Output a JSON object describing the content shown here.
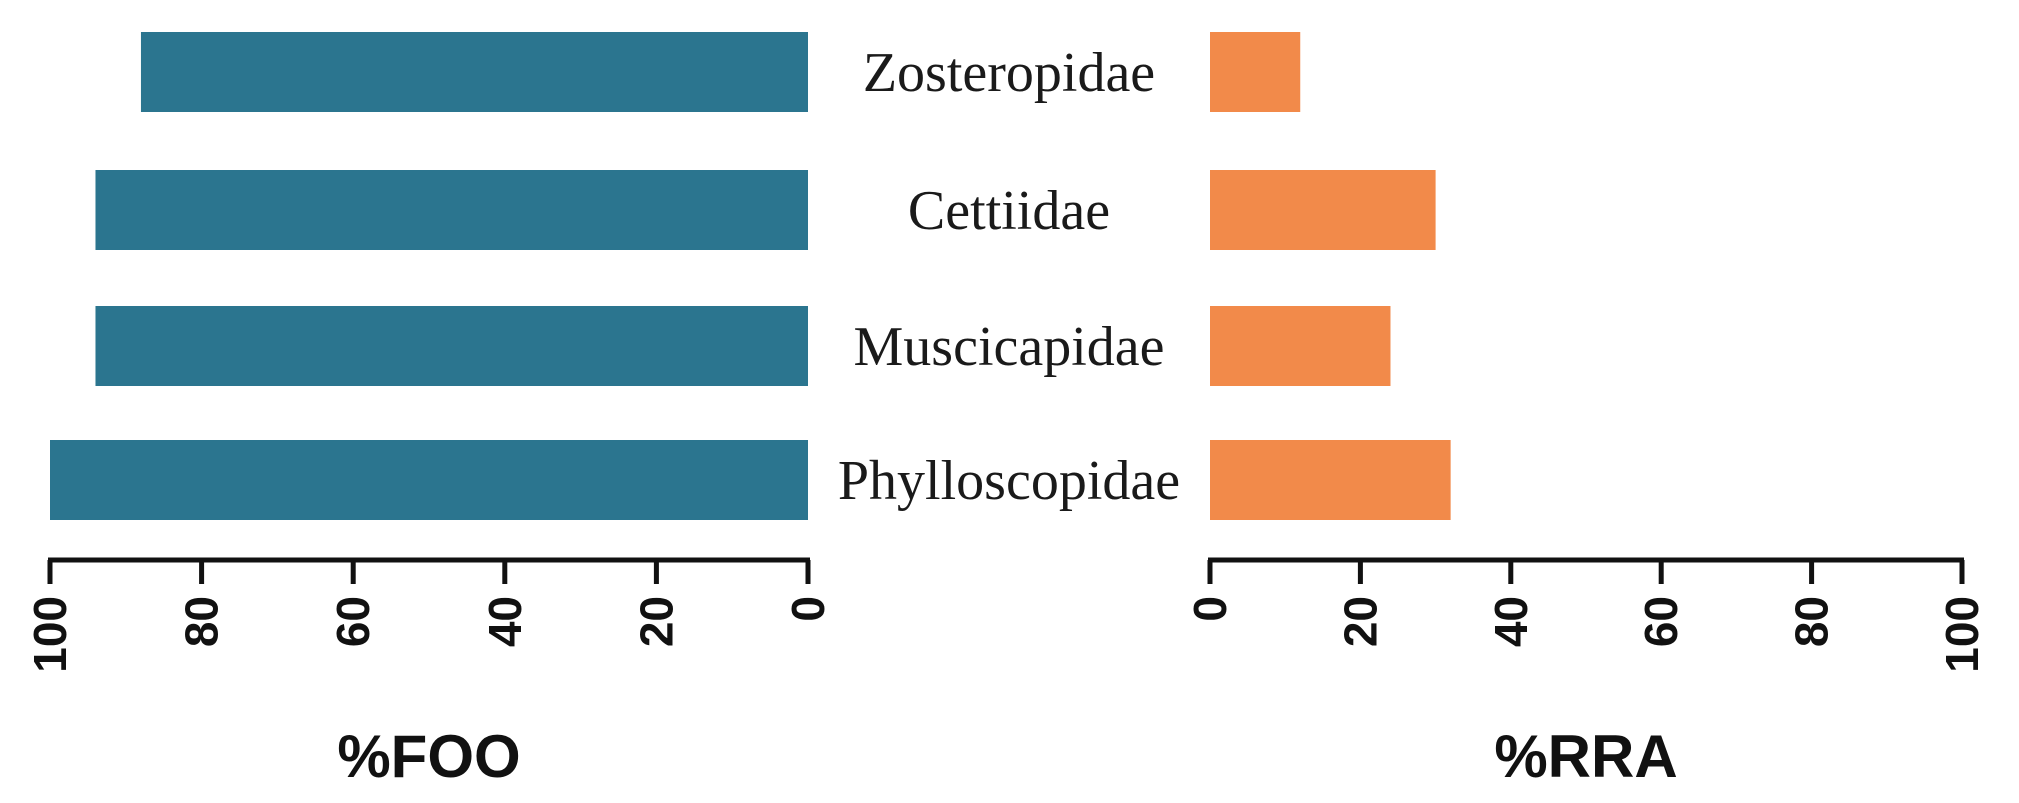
{
  "chart_data": {
    "type": "bar",
    "orientation": "horizontal",
    "layout": "back-to-back",
    "categories": [
      "Zosteropidae",
      "Cettiidae",
      "Muscicapidae",
      "Phylloscopidae"
    ],
    "series": [
      {
        "name": "%FOO",
        "values": [
          88,
          94,
          94,
          100
        ],
        "color": "#2b758f",
        "direction": "left",
        "xlabel": "%FOO",
        "xlim": [
          0,
          100
        ],
        "ticks": [
          "0",
          "20",
          "40",
          "60",
          "80",
          "100"
        ]
      },
      {
        "name": "%RRA",
        "values": [
          12,
          30,
          24,
          32
        ],
        "color": "#f28a4a",
        "direction": "right",
        "xlabel": "%RRA",
        "xlim": [
          0,
          100
        ],
        "ticks": [
          "0",
          "20",
          "40",
          "60",
          "80",
          "100"
        ]
      }
    ],
    "grid": false,
    "legend": "none"
  }
}
